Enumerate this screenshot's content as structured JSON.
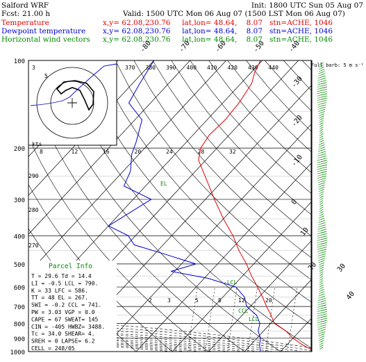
{
  "header": {
    "model": "Salford WRF",
    "init": "Init: 1800 UTC Sun 05 Aug 07",
    "fcst_label": "Fcst:",
    "fcst_value": "21.00 h",
    "valid": "Valid: 1500 UTC Mon 06 Aug 07 (1500 LST Mon 06 Aug 07)",
    "lines": [
      {
        "label": "Temperature",
        "info": "x,y= 62.08,230.76     lat,lon= 48.64,    8.07   stn=ACHE, 1046",
        "color": "#e00000"
      },
      {
        "label": "Dewpoint temperature",
        "info": "x,y= 62.08,230.76     lat,lon= 48.64,    8.07   stn=ACHE, 1046",
        "color": "#0000d0"
      },
      {
        "label": "Horizontal wind vectors",
        "info": "x,y= 62.08,230.76     lat,lon= 48.64,    8.07   stn=ACHE, 1046",
        "color": "#008800"
      }
    ]
  },
  "chart_data": {
    "type": "line",
    "y_axis": {
      "label": "Pressure (hPa)",
      "ticks": [
        100,
        200,
        300,
        400,
        500,
        600,
        700,
        800,
        900,
        1000
      ],
      "ylim": [
        1000,
        100
      ],
      "scale": "log"
    },
    "isotherm_labels": [
      "-80",
      "-70",
      "-60",
      "-50",
      "-40",
      "-30",
      "-20",
      "-10",
      "0",
      "10",
      "20",
      "30",
      "40"
    ],
    "theta_labels": [
      "370",
      "380",
      "390",
      "400",
      "410",
      "420",
      "430",
      "440"
    ],
    "mixing_ratio_labels_upper": [
      "8",
      "12",
      "16",
      "20",
      "24",
      "28",
      "32"
    ],
    "mixing_ratio_labels_lower": [
      "2",
      "3",
      "5",
      "8",
      "12",
      "20"
    ],
    "height_labels": [
      "290",
      "280",
      "270",
      "260"
    ],
    "kts_label": "kts",
    "wind_label": "Full barb:\n5 m s⁻¹",
    "annotations": {
      "lcl": "-LCL",
      "lfc": "LFC",
      "ccl": "CCL",
      "lcl2": "LCL",
      "el": "EL"
    },
    "series": [
      {
        "name": "Temperature",
        "color": "#e00000",
        "points": [
          [
            1000,
            29.6
          ],
          [
            950,
            24.5
          ],
          [
            900,
            20.0
          ],
          [
            850,
            16.2
          ],
          [
            800,
            11.0
          ],
          [
            750,
            8.0
          ],
          [
            700,
            4.5
          ],
          [
            650,
            1.0
          ],
          [
            600,
            -3.0
          ],
          [
            550,
            -7.5
          ],
          [
            500,
            -12.0
          ],
          [
            450,
            -17.5
          ],
          [
            400,
            -23.0
          ],
          [
            350,
            -30.0
          ],
          [
            300,
            -37.5
          ],
          [
            250,
            -46.0
          ],
          [
            220,
            -52.0
          ],
          [
            200,
            -54.5
          ],
          [
            180,
            -55.5
          ],
          [
            160,
            -55.0
          ],
          [
            140,
            -55.5
          ],
          [
            120,
            -57.0
          ],
          [
            110,
            -59.0
          ],
          [
            100,
            -60.5
          ]
        ]
      },
      {
        "name": "Dewpoint temperature",
        "color": "#0000d0",
        "points": [
          [
            1000,
            14.4
          ],
          [
            950,
            12.5
          ],
          [
            900,
            11.0
          ],
          [
            850,
            8.5
          ],
          [
            800,
            7.0
          ],
          [
            750,
            4.0
          ],
          [
            700,
            -1.0
          ],
          [
            650,
            -4.0
          ],
          [
            600,
            -9.0
          ],
          [
            560,
            -19.0
          ],
          [
            530,
            -31.0
          ],
          [
            500,
            -26.0
          ],
          [
            460,
            -38.0
          ],
          [
            430,
            -48.0
          ],
          [
            400,
            -52.0
          ],
          [
            370,
            -60.0
          ],
          [
            340,
            -58.0
          ],
          [
            300,
            -55.0
          ],
          [
            270,
            -66.0
          ],
          [
            240,
            -68.0
          ],
          [
            210,
            -72.0
          ],
          [
            190,
            -74.0
          ],
          [
            160,
            -78.0
          ],
          [
            140,
            -86.0
          ],
          [
            120,
            -88.0
          ],
          [
            100,
            -90.0
          ]
        ]
      }
    ]
  },
  "parcel_info": {
    "title": "Parcel Info",
    "rows": [
      "T   =    29.6  Td =  14.4",
      "LI  =    -0.5  LCL =  790.",
      "K   =     33  LFC =  586.",
      "TT  =     48  EL  =  267.",
      "SWI =   -0.2  CCL =  741.",
      "PW  =   3.03  VGP =   0.0",
      "CAPE =   67  SWEAT=  145",
      "CIN  =  -405  HWBZ= 3488.",
      "Tc  =   34.0  SHEAR=   4.",
      "SREH =     0  LAPSE=  6.2",
      "CELL = 248/05"
    ]
  },
  "inset_map": {
    "label": "map inset with station marker"
  }
}
